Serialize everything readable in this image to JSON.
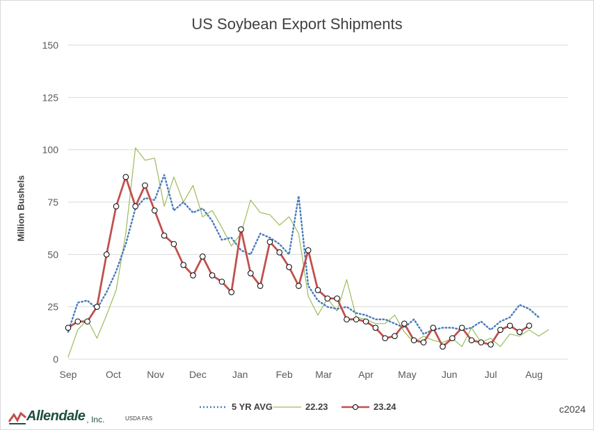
{
  "chart_data": {
    "type": "line",
    "title": "US Soybean Export Shipments",
    "ylabel": "Million Bushels",
    "xlabel": "",
    "ylim": [
      0,
      150
    ],
    "yticks": [
      0,
      25,
      50,
      75,
      100,
      125,
      150
    ],
    "month_labels": [
      "Sep",
      "Oct",
      "Nov",
      "Dec",
      "Jan",
      "Feb",
      "Mar",
      "Apr",
      "May",
      "Jun",
      "Jul",
      "Aug"
    ],
    "grid": true,
    "legend_position": "bottom",
    "series": [
      {
        "name": "5 YR AVG",
        "style": "dotted",
        "color": "#4a7ebb",
        "values": [
          13,
          27,
          28,
          24,
          32,
          42,
          55,
          72,
          77,
          76,
          88,
          71,
          75,
          70,
          72,
          66,
          57,
          58,
          52,
          50,
          60,
          58,
          55,
          50,
          78,
          35,
          28,
          25,
          24,
          25,
          22,
          21,
          19,
          19,
          17,
          15,
          19,
          12,
          14,
          15,
          15,
          14,
          15,
          18,
          14,
          18,
          20,
          26,
          24,
          20
        ]
      },
      {
        "name": "22.23",
        "style": "solid-thin",
        "color": "#9bbb59",
        "values": [
          1,
          14,
          19,
          10,
          21,
          33,
          60,
          101,
          95,
          96,
          73,
          87,
          75,
          83,
          68,
          71,
          63,
          54,
          60,
          76,
          70,
          69,
          64,
          68,
          60,
          30,
          21,
          29,
          23,
          38,
          20,
          19,
          17,
          17,
          21,
          13,
          8,
          11,
          9,
          8,
          10,
          6,
          15,
          8,
          10,
          6,
          12,
          11,
          14,
          11,
          14
        ]
      },
      {
        "name": "23.24",
        "style": "solid-marker",
        "color": "#c0504d",
        "values": [
          15,
          18,
          18,
          25,
          50,
          73,
          87,
          73,
          83,
          71,
          59,
          55,
          45,
          40,
          49,
          40,
          37,
          32,
          62,
          41,
          35,
          56,
          51,
          44,
          35,
          52,
          33,
          29,
          29,
          19,
          19,
          18,
          15,
          10,
          11,
          17,
          9,
          8,
          15,
          6,
          10,
          15,
          9,
          8,
          7,
          14,
          16,
          13,
          16
        ]
      }
    ]
  },
  "legend": {
    "avg_label": "5 YR AVG",
    "prev_label": "22.23",
    "curr_label": "23.24"
  },
  "footer": {
    "logo_text": "Allendale",
    "logo_suffix": ", Inc.",
    "source": "USDA FAS",
    "copyright": "c2024"
  },
  "colors": {
    "avg": "#4a7ebb",
    "prev": "#9bbb59",
    "curr": "#c0504d",
    "grid": "#d9d9d9",
    "logo": "#1f4e3d"
  }
}
